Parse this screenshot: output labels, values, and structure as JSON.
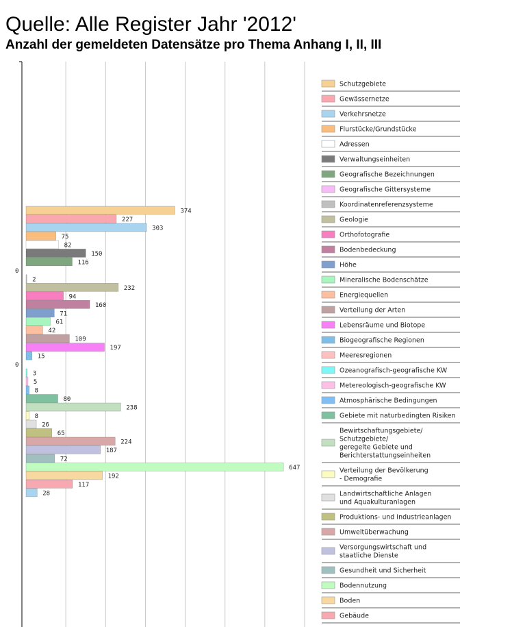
{
  "chart_data": {
    "type": "bar",
    "orientation": "horizontal",
    "title": "Quelle: Alle Register Jahr '2012'",
    "subtitle": "Anzahl der gemeldeten Datensätze pro Thema Anhang I, II, III",
    "xlim": [
      0,
      700
    ],
    "xticks": [
      100,
      200,
      300,
      400,
      500,
      600,
      700
    ],
    "grid": true,
    "series": [
      {
        "name": "Schutzgebiete",
        "color": "#f6d193",
        "values": [
          374
        ]
      },
      {
        "name": "Gewässernetze",
        "color": "#f9a8b0",
        "values": [
          227
        ]
      },
      {
        "name": "Verkehrsnetze",
        "color": "#a8d4f0",
        "values": [
          303
        ]
      },
      {
        "name": "Flurstücke/Grundstücke",
        "color": "#fbbd7e",
        "values": [
          75
        ]
      },
      {
        "name": "Adressen",
        "color": "#ffffff",
        "values": [
          82
        ]
      },
      {
        "name": "Verwaltungseinheiten",
        "color": "#7a7a7a",
        "values": [
          150
        ]
      },
      {
        "name": "Geografische Bezeichnungen",
        "color": "#7fa67f",
        "values": [
          116
        ]
      },
      {
        "name": "Geografische Gittersysteme",
        "color": "#f5bcf5",
        "values": [
          0
        ]
      },
      {
        "name": "Koordinatenreferenzsysteme",
        "color": "#c0c0c0",
        "values": [
          2
        ]
      },
      {
        "name": "Geologie",
        "color": "#c0c0a0",
        "values": [
          232
        ]
      },
      {
        "name": "Orthofotografie",
        "color": "#f77fbf",
        "values": [
          94
        ]
      },
      {
        "name": "Bodenbedeckung",
        "color": "#c080a0",
        "values": [
          160
        ]
      },
      {
        "name": "Höhe",
        "color": "#7f9fcf",
        "values": [
          71
        ]
      },
      {
        "name": "Mineralische Bodenschätze",
        "color": "#a8f5c0",
        "values": [
          61
        ]
      },
      {
        "name": "Energiequellen",
        "color": "#fcc0a0",
        "values": [
          42
        ]
      },
      {
        "name": "Verteilung der Arten",
        "color": "#c0a0a0",
        "values": [
          109
        ]
      },
      {
        "name": "Lebensräume und Biotope",
        "color": "#f780f7",
        "values": [
          197
        ]
      },
      {
        "name": "Biogeografische Regionen",
        "color": "#7fbfe7",
        "values": [
          15
        ]
      },
      {
        "name": "Meeresregionen",
        "color": "#fcc0c0",
        "values": [
          0
        ]
      },
      {
        "name": "Ozeanografisch-geografische KW",
        "color": "#7ff7f7",
        "values": [
          3
        ]
      },
      {
        "name": "Metereologisch-geografische KW",
        "color": "#fcc0e7",
        "values": [
          5
        ]
      },
      {
        "name": "Atmosphärische Bedingungen",
        "color": "#7fbff7",
        "values": [
          8
        ]
      },
      {
        "name": "Gebiete mit naturbedingten Risiken",
        "color": "#7fc0a0",
        "values": [
          80
        ]
      },
      {
        "name": "Bewirtschaftungsgebiete/\nSchutzgebiete/\ngeregelte Gebiete und\nBerichterstattungseinheiten",
        "color": "#c0e0c0",
        "values": [
          238
        ]
      },
      {
        "name": "Verteilung der Bevölkerung\n- Demografie",
        "color": "#fcfcc0",
        "values": [
          8
        ]
      },
      {
        "name": "Landwirtschaftliche Anlagen\nund Aquakulturanlagen",
        "color": "#e0e0e0",
        "values": [
          26
        ]
      },
      {
        "name": "Produktions- und Industrieanlagen",
        "color": "#c0c080",
        "values": [
          65
        ]
      },
      {
        "name": "Umweltüberwachung",
        "color": "#d8a8a8",
        "values": [
          224
        ]
      },
      {
        "name": "Versorgungswirtschaft und\nstaatliche Dienste",
        "color": "#c0c0e0",
        "values": [
          187
        ]
      },
      {
        "name": "Gesundheit und Sicherheit",
        "color": "#a0c0c0",
        "values": [
          72
        ]
      },
      {
        "name": "Bodennutzung",
        "color": "#c0fcc0",
        "values": [
          647
        ]
      },
      {
        "name": "Boden",
        "color": "#f7d8a0",
        "values": [
          192
        ]
      },
      {
        "name": "Gebäude",
        "color": "#f7a8b0",
        "values": [
          117
        ]
      },
      {
        "color": "#a8d4f0",
        "values": [
          28
        ]
      }
    ]
  }
}
